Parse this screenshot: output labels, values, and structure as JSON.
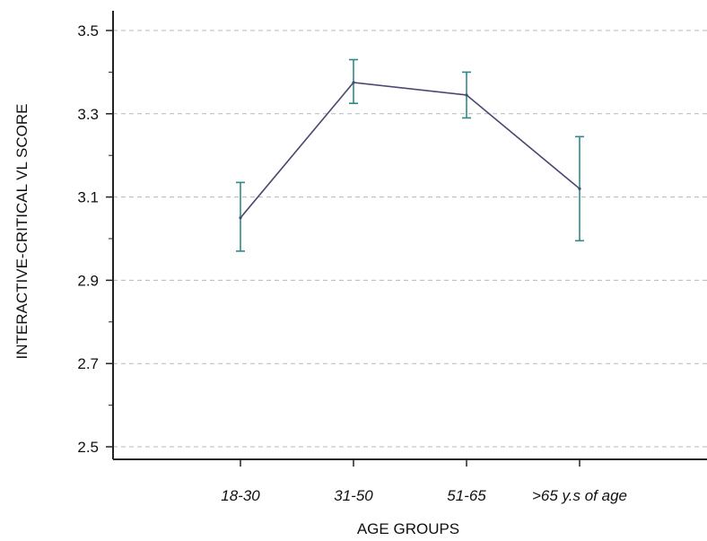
{
  "chart_data": {
    "type": "line",
    "title": "",
    "xlabel": "AGE GROUPS",
    "ylabel": "INTERACTIVE-CRITICAL VL SCORE",
    "categories": [
      "18-30",
      "31-50",
      "51-65",
      ">65 y.s of age"
    ],
    "series": [
      {
        "values": [
          3.05,
          3.375,
          3.345,
          3.12
        ],
        "error_low": [
          2.97,
          3.325,
          3.29,
          2.995
        ],
        "error_high": [
          3.135,
          3.43,
          3.4,
          3.245
        ]
      }
    ],
    "ylim": [
      2.5,
      3.5
    ],
    "yticks": [
      "2.5",
      "2.7",
      "2.9",
      "3.1",
      "3.3",
      "3.5"
    ],
    "grid": "horizontal dashed",
    "colors": {
      "line": "#4a4870",
      "error_bars": "#2e8a88",
      "grid": "#b8b8b8",
      "axis": "#222222"
    }
  }
}
